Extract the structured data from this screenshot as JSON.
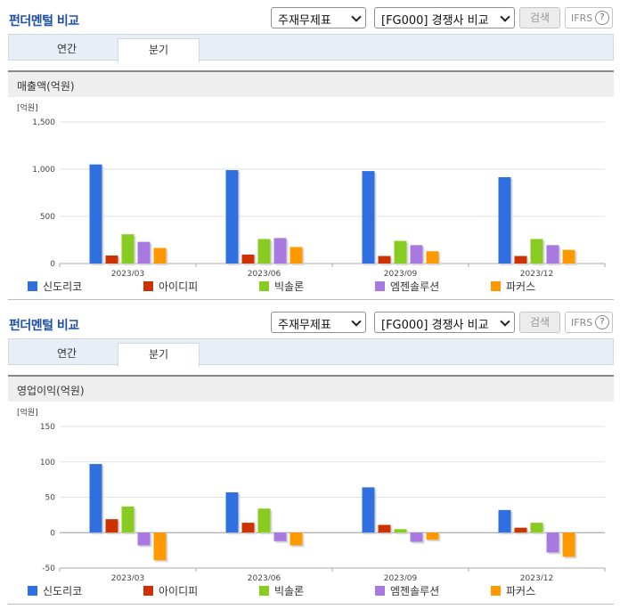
{
  "header": {
    "title": "펀더멘털 비교",
    "select_type": "주재무제표",
    "select_group": "[FG000] 경쟁사 비교",
    "search_label": "검색",
    "ifrs_label": "IFRS",
    "help_glyph": "?"
  },
  "tabs": [
    {
      "label": "연간"
    },
    {
      "label": "분기"
    }
  ],
  "active_tab": "분기",
  "legend": [
    "신도리코",
    "아이디피",
    "빅솔론",
    "엠젠솔루션",
    "파커스"
  ],
  "colors": {
    "title": "#1d4fa3",
    "series": [
      "#2f6fe0",
      "#cc3300",
      "#88cc22",
      "#a879e0",
      "#ff9900"
    ]
  },
  "charts": [
    {
      "panel_title": "매출액(억원)",
      "unit": "[억원]",
      "chart_data": {
        "type": "bar",
        "title": "매출액(억원)",
        "ylabel": "[억원]",
        "categories": [
          "2023/03",
          "2023/06",
          "2023/09",
          "2023/12"
        ],
        "ylim": [
          0,
          1500
        ],
        "yticks": [
          0,
          500,
          1000,
          1500
        ],
        "ytick_labels": [
          "0",
          "500",
          "1,000",
          "1,500"
        ],
        "grid": true,
        "legend_position": "bottom",
        "series": [
          {
            "name": "신도리코",
            "values": [
              1050,
              990,
              980,
              915
            ]
          },
          {
            "name": "아이디피",
            "values": [
              85,
              95,
              80,
              80
            ]
          },
          {
            "name": "빅솔론",
            "values": [
              310,
              260,
              240,
              260
            ]
          },
          {
            "name": "엠젠솔루션",
            "values": [
              230,
              270,
              195,
              195
            ]
          },
          {
            "name": "파커스",
            "values": [
              165,
              175,
              130,
              145
            ]
          }
        ]
      }
    },
    {
      "panel_title": "영업이익(억원)",
      "unit": "[억원]",
      "chart_data": {
        "type": "bar",
        "title": "영업이익(억원)",
        "ylabel": "[억원]",
        "categories": [
          "2023/03",
          "2023/06",
          "2023/09",
          "2023/12"
        ],
        "ylim": [
          -50,
          150
        ],
        "yticks": [
          -50,
          0,
          50,
          100,
          150
        ],
        "ytick_labels": [
          "-50",
          "0",
          "50",
          "100",
          "150"
        ],
        "grid": true,
        "legend_position": "bottom",
        "series": [
          {
            "name": "신도리코",
            "values": [
              97,
              57,
              64,
              32
            ]
          },
          {
            "name": "아이디피",
            "values": [
              19,
              14,
              11,
              7
            ]
          },
          {
            "name": "빅솔론",
            "values": [
              37,
              34,
              5,
              14
            ]
          },
          {
            "name": "엠젠솔루션",
            "values": [
              -18,
              -12,
              -13,
              -28
            ]
          },
          {
            "name": "파커스",
            "values": [
              -39,
              -18,
              -10,
              -34
            ]
          }
        ]
      }
    }
  ]
}
